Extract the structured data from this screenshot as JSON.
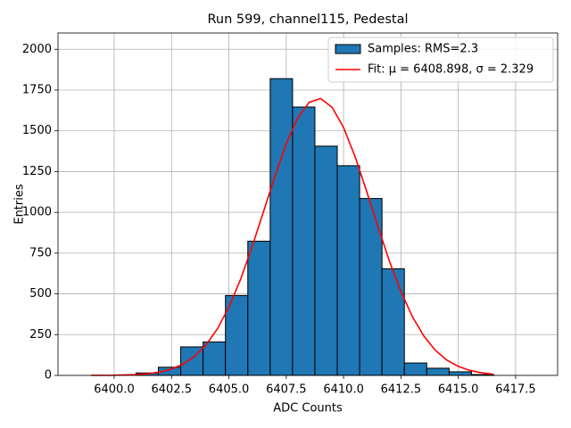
{
  "chart_data": {
    "type": "histogram",
    "title": "Run 599, channel115, Pedestal",
    "xlabel": "ADC Counts",
    "ylabel": "Entries",
    "bins": [
      6400.95,
      6401.925,
      6402.9,
      6403.875,
      6404.85,
      6405.825,
      6406.8,
      6407.775,
      6408.75,
      6409.725,
      6410.7,
      6411.675,
      6412.65,
      6413.625,
      6414.6,
      6415.575,
      6416.55
    ],
    "series": [
      {
        "name": "Samples: RMS=2.3",
        "type": "histogram",
        "color": "#1f77b4",
        "values": [
          15,
          50,
          175,
          205,
          490,
          823,
          1820,
          1646,
          1406,
          1286,
          1085,
          654,
          76,
          44,
          22,
          5
        ]
      },
      {
        "name": "Fit: μ = 6408.898, σ = 2.329",
        "type": "line",
        "color": "#ff0000",
        "x": [
          6399,
          6400,
          6401,
          6401.5,
          6402,
          6402.5,
          6403,
          6403.5,
          6404,
          6404.5,
          6405,
          6405.5,
          6406,
          6406.5,
          6407,
          6407.5,
          6408,
          6408.5,
          6409,
          6409.5,
          6410,
          6410.5,
          6411,
          6411.5,
          6412,
          6412.5,
          6413,
          6413.5,
          6414,
          6414.5,
          6415,
          6415.5,
          6416,
          6416.5
        ],
        "values": [
          0.2,
          1.2,
          5.4,
          11,
          21,
          39,
          69,
          116,
          186,
          286,
          419,
          586,
          784,
          1001,
          1219,
          1420,
          1578,
          1675,
          1698,
          1644,
          1520,
          1342,
          1131,
          911,
          700,
          514,
          360,
          241,
          154,
          94,
          55,
          31,
          16,
          8
        ]
      }
    ],
    "xlim": [
      6397.55,
      6419.33
    ],
    "ylim": [
      0,
      2100
    ],
    "xticks": [
      {
        "value": 6400,
        "label": "6400.0"
      },
      {
        "value": 6402.5,
        "label": "6402.5"
      },
      {
        "value": 6405,
        "label": "6405.0"
      },
      {
        "value": 6407.5,
        "label": "6407.5"
      },
      {
        "value": 6410,
        "label": "6410.0"
      },
      {
        "value": 6412.5,
        "label": "6412.5"
      },
      {
        "value": 6415,
        "label": "6415.0"
      },
      {
        "value": 6417.5,
        "label": "6417.5"
      }
    ],
    "yticks": [
      0,
      250,
      500,
      750,
      1000,
      1250,
      1500,
      1750,
      2000
    ],
    "grid": true,
    "legend": "upper right"
  }
}
